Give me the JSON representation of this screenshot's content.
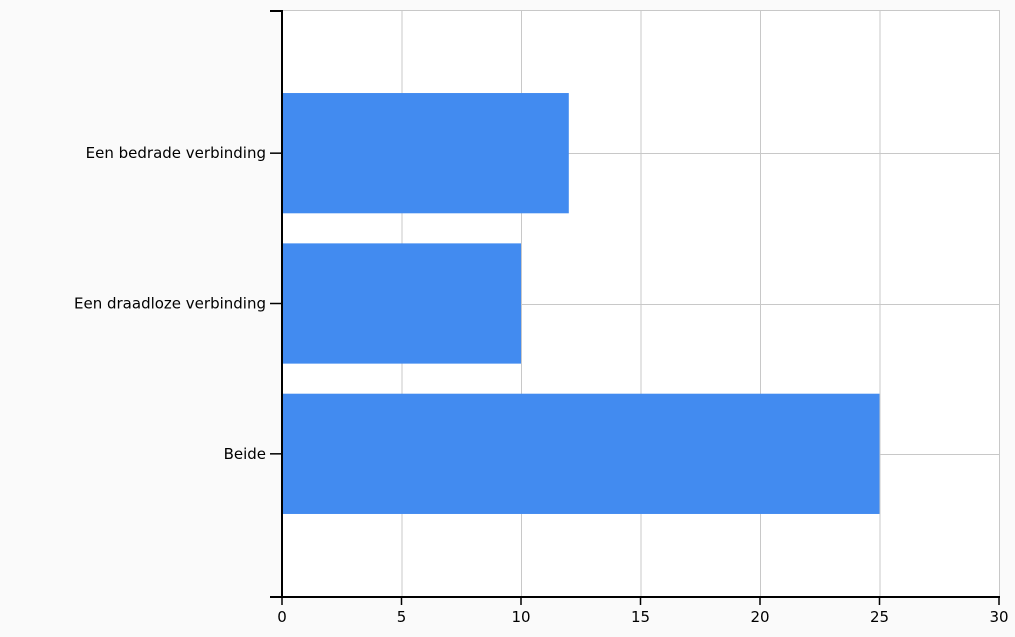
{
  "chart_data": {
    "type": "bar",
    "orientation": "horizontal",
    "categories": [
      "Een bedrade verbinding",
      "Een draadloze verbinding",
      "Beide"
    ],
    "values": [
      12,
      10,
      25
    ],
    "xlim": [
      0,
      30
    ],
    "xticks": [
      0,
      5,
      10,
      15,
      20,
      25,
      30
    ],
    "grid": true,
    "bar_color": "#428bf0",
    "title": "",
    "xlabel": "",
    "ylabel": ""
  }
}
